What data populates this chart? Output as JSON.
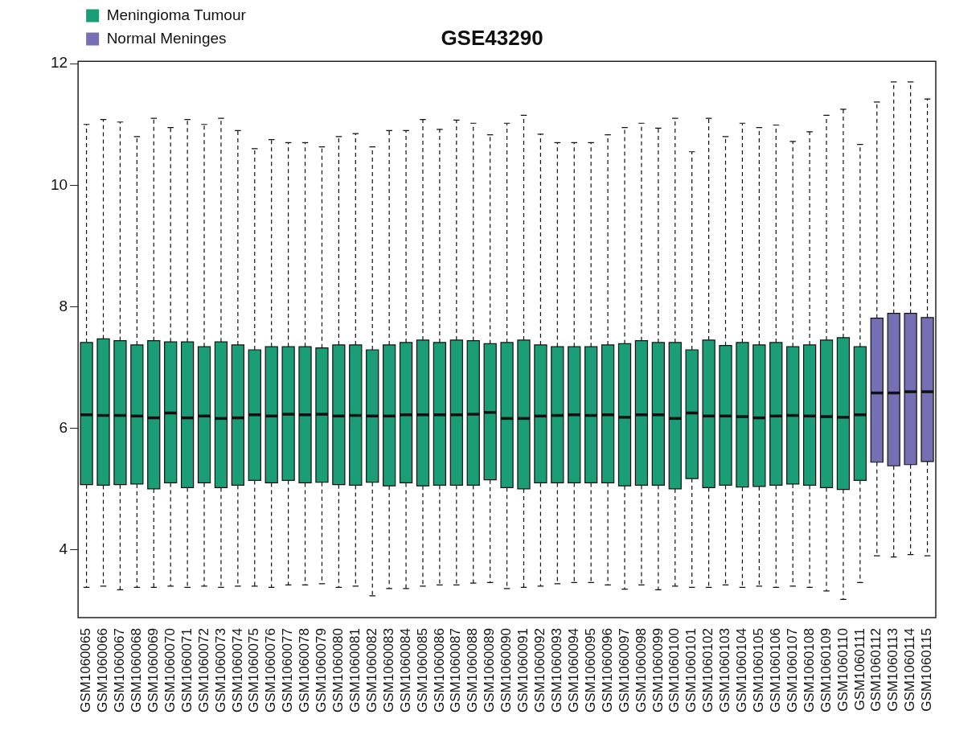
{
  "chart_data": {
    "type": "box",
    "title": "GSE43290",
    "categories": [
      "GSM1060065",
      "GSM1060066",
      "GSM1060067",
      "GSM1060068",
      "GSM1060069",
      "GSM1060070",
      "GSM1060071",
      "GSM1060072",
      "GSM1060073",
      "GSM1060074",
      "GSM1060075",
      "GSM1060076",
      "GSM1060077",
      "GSM1060078",
      "GSM1060079",
      "GSM1060080",
      "GSM1060081",
      "GSM1060082",
      "GSM1060083",
      "GSM1060084",
      "GSM1060085",
      "GSM1060086",
      "GSM1060087",
      "GSM1060088",
      "GSM1060089",
      "GSM1060090",
      "GSM1060091",
      "GSM1060092",
      "GSM1060093",
      "GSM1060094",
      "GSM1060095",
      "GSM1060096",
      "GSM1060097",
      "GSM1060098",
      "GSM1060099",
      "GSM1060100",
      "GSM1060101",
      "GSM1060102",
      "GSM1060103",
      "GSM1060104",
      "GSM1060105",
      "GSM1060106",
      "GSM1060107",
      "GSM1060108",
      "GSM1060109",
      "GSM1060110",
      "GSM1060111",
      "GSM1060112",
      "GSM1060113",
      "GSM1060114",
      "GSM1060115"
    ],
    "series": [
      {
        "name": "Meningioma Tumour",
        "color": "#1b9e77",
        "boxes": [
          {
            "low": 3.38,
            "q1": 5.07,
            "median": 6.22,
            "q3": 7.41,
            "high": 11.0
          },
          {
            "low": 3.4,
            "q1": 5.06,
            "median": 6.21,
            "q3": 7.47,
            "high": 11.08
          },
          {
            "low": 3.34,
            "q1": 5.07,
            "median": 6.21,
            "q3": 7.44,
            "high": 11.04
          },
          {
            "low": 3.38,
            "q1": 5.08,
            "median": 6.2,
            "q3": 7.37,
            "high": 10.8
          },
          {
            "low": 3.38,
            "q1": 5.0,
            "median": 6.17,
            "q3": 7.44,
            "high": 11.1
          },
          {
            "low": 3.4,
            "q1": 5.1,
            "median": 6.25,
            "q3": 7.42,
            "high": 10.95
          },
          {
            "low": 3.38,
            "q1": 5.02,
            "median": 6.17,
            "q3": 7.42,
            "high": 11.08
          },
          {
            "low": 3.4,
            "q1": 5.1,
            "median": 6.2,
            "q3": 7.34,
            "high": 11.0
          },
          {
            "low": 3.38,
            "q1": 5.02,
            "median": 6.16,
            "q3": 7.42,
            "high": 11.1
          },
          {
            "low": 3.4,
            "q1": 5.06,
            "median": 6.17,
            "q3": 7.37,
            "high": 10.9
          },
          {
            "low": 3.4,
            "q1": 5.14,
            "median": 6.22,
            "q3": 7.29,
            "high": 10.6
          },
          {
            "low": 3.38,
            "q1": 5.1,
            "median": 6.2,
            "q3": 7.34,
            "high": 10.75
          },
          {
            "low": 3.42,
            "q1": 5.14,
            "median": 6.23,
            "q3": 7.34,
            "high": 10.7
          },
          {
            "low": 3.42,
            "q1": 5.1,
            "median": 6.22,
            "q3": 7.34,
            "high": 10.7
          },
          {
            "low": 3.44,
            "q1": 5.11,
            "median": 6.23,
            "q3": 7.32,
            "high": 10.63
          },
          {
            "low": 3.38,
            "q1": 5.07,
            "median": 6.2,
            "q3": 7.37,
            "high": 10.8
          },
          {
            "low": 3.4,
            "q1": 5.06,
            "median": 6.21,
            "q3": 7.37,
            "high": 10.85
          },
          {
            "low": 3.24,
            "q1": 5.11,
            "median": 6.2,
            "q3": 7.29,
            "high": 10.63
          },
          {
            "low": 3.36,
            "q1": 5.05,
            "median": 6.2,
            "q3": 7.37,
            "high": 10.9
          },
          {
            "low": 3.36,
            "q1": 5.1,
            "median": 6.22,
            "q3": 7.41,
            "high": 10.9
          },
          {
            "low": 3.4,
            "q1": 5.05,
            "median": 6.22,
            "q3": 7.45,
            "high": 11.08
          },
          {
            "low": 3.42,
            "q1": 5.06,
            "median": 6.22,
            "q3": 7.41,
            "high": 10.92
          },
          {
            "low": 3.42,
            "q1": 5.06,
            "median": 6.22,
            "q3": 7.45,
            "high": 11.07
          },
          {
            "low": 3.45,
            "q1": 5.06,
            "median": 6.23,
            "q3": 7.44,
            "high": 11.02
          },
          {
            "low": 3.46,
            "q1": 5.15,
            "median": 6.26,
            "q3": 7.39,
            "high": 10.83
          },
          {
            "low": 3.36,
            "q1": 5.02,
            "median": 6.16,
            "q3": 7.41,
            "high": 11.02
          },
          {
            "low": 3.38,
            "q1": 5.0,
            "median": 6.16,
            "q3": 7.45,
            "high": 11.15
          },
          {
            "low": 3.4,
            "q1": 5.1,
            "median": 6.2,
            "q3": 7.37,
            "high": 10.84
          },
          {
            "low": 3.44,
            "q1": 5.1,
            "median": 6.21,
            "q3": 7.34,
            "high": 10.7
          },
          {
            "low": 3.46,
            "q1": 5.1,
            "median": 6.22,
            "q3": 7.34,
            "high": 10.7
          },
          {
            "low": 3.46,
            "q1": 5.1,
            "median": 6.21,
            "q3": 7.34,
            "high": 10.7
          },
          {
            "low": 3.42,
            "q1": 5.1,
            "median": 6.22,
            "q3": 7.37,
            "high": 10.83
          },
          {
            "low": 3.35,
            "q1": 5.05,
            "median": 6.18,
            "q3": 7.39,
            "high": 10.95
          },
          {
            "low": 3.42,
            "q1": 5.06,
            "median": 6.22,
            "q3": 7.44,
            "high": 11.02
          },
          {
            "low": 3.34,
            "q1": 5.06,
            "median": 6.22,
            "q3": 7.41,
            "high": 10.94
          },
          {
            "low": 3.4,
            "q1": 5.0,
            "median": 6.16,
            "q3": 7.41,
            "high": 11.1
          },
          {
            "low": 3.38,
            "q1": 5.17,
            "median": 6.25,
            "q3": 7.29,
            "high": 10.55
          },
          {
            "low": 3.38,
            "q1": 5.02,
            "median": 6.2,
            "q3": 7.45,
            "high": 11.1
          },
          {
            "low": 3.42,
            "q1": 5.06,
            "median": 6.2,
            "q3": 7.36,
            "high": 10.8
          },
          {
            "low": 3.38,
            "q1": 5.03,
            "median": 6.19,
            "q3": 7.41,
            "high": 11.02
          },
          {
            "low": 3.4,
            "q1": 5.04,
            "median": 6.17,
            "q3": 7.37,
            "high": 10.95
          },
          {
            "low": 3.38,
            "q1": 5.06,
            "median": 6.2,
            "q3": 7.41,
            "high": 10.99
          },
          {
            "low": 3.4,
            "q1": 5.08,
            "median": 6.21,
            "q3": 7.34,
            "high": 10.72
          },
          {
            "low": 3.38,
            "q1": 5.06,
            "median": 6.2,
            "q3": 7.37,
            "high": 10.88
          },
          {
            "low": 3.32,
            "q1": 5.02,
            "median": 6.19,
            "q3": 7.45,
            "high": 11.15
          },
          {
            "low": 3.18,
            "q1": 4.99,
            "median": 6.18,
            "q3": 7.49,
            "high": 11.25
          },
          {
            "low": 3.46,
            "q1": 5.14,
            "median": 6.22,
            "q3": 7.34,
            "high": 10.67
          },
          null,
          null,
          null,
          null
        ]
      },
      {
        "name": "Normal Meninges",
        "color": "#7570b3",
        "boxes": [
          null,
          null,
          null,
          null,
          null,
          null,
          null,
          null,
          null,
          null,
          null,
          null,
          null,
          null,
          null,
          null,
          null,
          null,
          null,
          null,
          null,
          null,
          null,
          null,
          null,
          null,
          null,
          null,
          null,
          null,
          null,
          null,
          null,
          null,
          null,
          null,
          null,
          null,
          null,
          null,
          null,
          null,
          null,
          null,
          null,
          null,
          null,
          {
            "low": 3.9,
            "q1": 5.44,
            "median": 6.58,
            "q3": 7.81,
            "high": 11.37
          },
          {
            "low": 3.88,
            "q1": 5.38,
            "median": 6.58,
            "q3": 7.89,
            "high": 11.7
          },
          {
            "low": 3.92,
            "q1": 5.4,
            "median": 6.6,
            "q3": 7.89,
            "high": 11.7
          },
          {
            "low": 3.9,
            "q1": 5.45,
            "median": 6.6,
            "q3": 7.82,
            "high": 11.42
          }
        ]
      }
    ],
    "ylim": [
      2.88,
      12.04
    ],
    "yticks": [
      4,
      6,
      8,
      10,
      12
    ],
    "grid": false,
    "legend": "top left",
    "line_style": "dashed"
  }
}
